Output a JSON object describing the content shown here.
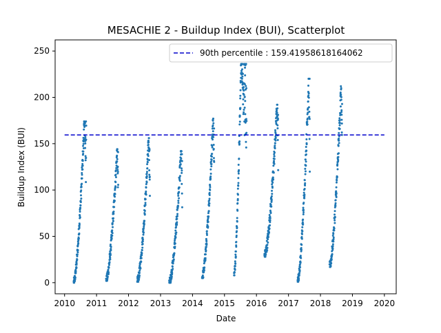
{
  "chart_data": {
    "type": "scatter",
    "title": "MESACHIE 2 - Buildup Index (BUI), Scatterplot",
    "xlabel": "Date",
    "ylabel": "Buildup Index (BUI)",
    "xlim": [
      "2009-09-15",
      "2020-05-15"
    ],
    "ylim": [
      -12,
      262
    ],
    "xticks": [
      "2010",
      "2011",
      "2012",
      "2013",
      "2014",
      "2015",
      "2016",
      "2017",
      "2018",
      "2019",
      "2020"
    ],
    "yticks": [
      0,
      50,
      100,
      150,
      200,
      250
    ],
    "grid": false,
    "legend": {
      "placement": "top-right",
      "entries": [
        "90th percentile : 159.41958618164062"
      ]
    },
    "colors": {
      "points": "#1f77b4",
      "percentile_line": "#0000cc"
    },
    "percentile_line": {
      "value": 159.41958618164062,
      "x_start": "2010-01-01",
      "x_end": "2020-01-01"
    },
    "seasons": [
      {
        "start": "2010-04-15",
        "peak": "2010-08-15",
        "end": "2010-09-05",
        "vmin": 0,
        "vmax": 174
      },
      {
        "start": "2011-04-20",
        "peak": "2011-08-25",
        "end": "2011-09-05",
        "vmin": 2,
        "vmax": 144
      },
      {
        "start": "2012-04-10",
        "peak": "2012-08-20",
        "end": "2012-09-01",
        "vmin": 1,
        "vmax": 156
      },
      {
        "start": "2013-04-10",
        "peak": "2013-08-25",
        "end": "2013-09-05",
        "vmin": 0,
        "vmax": 142
      },
      {
        "start": "2014-04-20",
        "peak": "2014-08-25",
        "end": "2014-09-05",
        "vmin": 5,
        "vmax": 177
      },
      {
        "start": "2015-04-20",
        "peak": "2015-07-10",
        "end": "2015-09-10",
        "vmin": 8,
        "vmax": 236
      },
      {
        "start": "2016-04-01",
        "peak": "2016-08-25",
        "end": "2016-09-05",
        "vmin": 28,
        "vmax": 192
      },
      {
        "start": "2017-04-15",
        "peak": "2017-08-20",
        "end": "2017-09-01",
        "vmin": 1,
        "vmax": 220
      },
      {
        "start": "2018-04-15",
        "peak": "2018-08-25",
        "end": "2018-09-05",
        "vmin": 17,
        "vmax": 212
      }
    ]
  }
}
